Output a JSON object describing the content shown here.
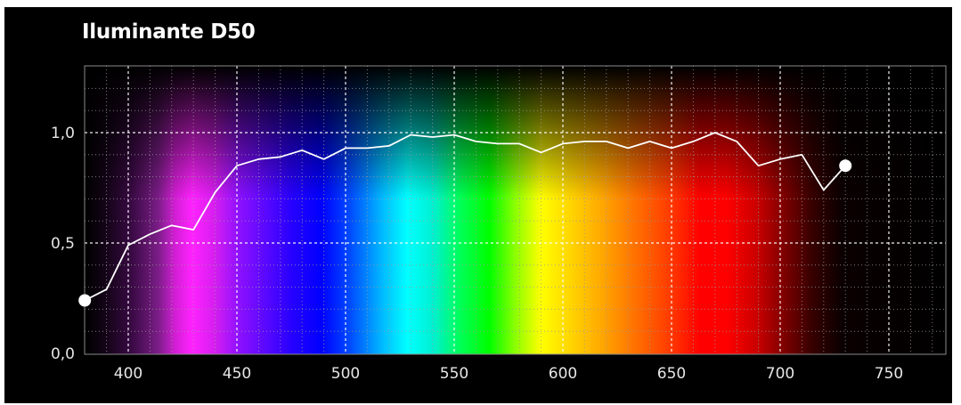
{
  "chart_data": {
    "type": "line",
    "title": "Iluminante D50",
    "xlabel": "",
    "ylabel": "",
    "xlim": [
      380,
      780
    ],
    "ylim": [
      0,
      1.25
    ],
    "x_ticks": [
      400,
      450,
      500,
      550,
      600,
      650,
      700,
      750
    ],
    "x_tick_labels": [
      "400",
      "450",
      "500",
      "550",
      "600",
      "650",
      "700",
      "750"
    ],
    "y_ticks": [
      0,
      0.5,
      1.0
    ],
    "y_tick_labels": [
      "0,0",
      "0,5",
      "1,0"
    ],
    "grid": true,
    "background": "visible light spectrum",
    "series": [
      {
        "color": "#ffffff",
        "x": [
          380,
          390,
          400,
          410,
          420,
          430,
          440,
          450,
          460,
          470,
          480,
          490,
          500,
          510,
          520,
          530,
          540,
          550,
          560,
          570,
          580,
          590,
          600,
          610,
          620,
          630,
          640,
          650,
          660,
          670,
          680,
          690,
          700,
          710,
          720,
          730
        ],
        "y": [
          0.24,
          0.29,
          0.49,
          0.54,
          0.58,
          0.56,
          0.73,
          0.85,
          0.88,
          0.89,
          0.92,
          0.88,
          0.93,
          0.93,
          0.94,
          0.99,
          0.98,
          0.99,
          0.96,
          0.95,
          0.95,
          0.91,
          0.95,
          0.96,
          0.96,
          0.93,
          0.96,
          0.93,
          0.96,
          1.0,
          0.96,
          0.85,
          0.88,
          0.9,
          0.74,
          0.85
        ]
      }
    ]
  }
}
